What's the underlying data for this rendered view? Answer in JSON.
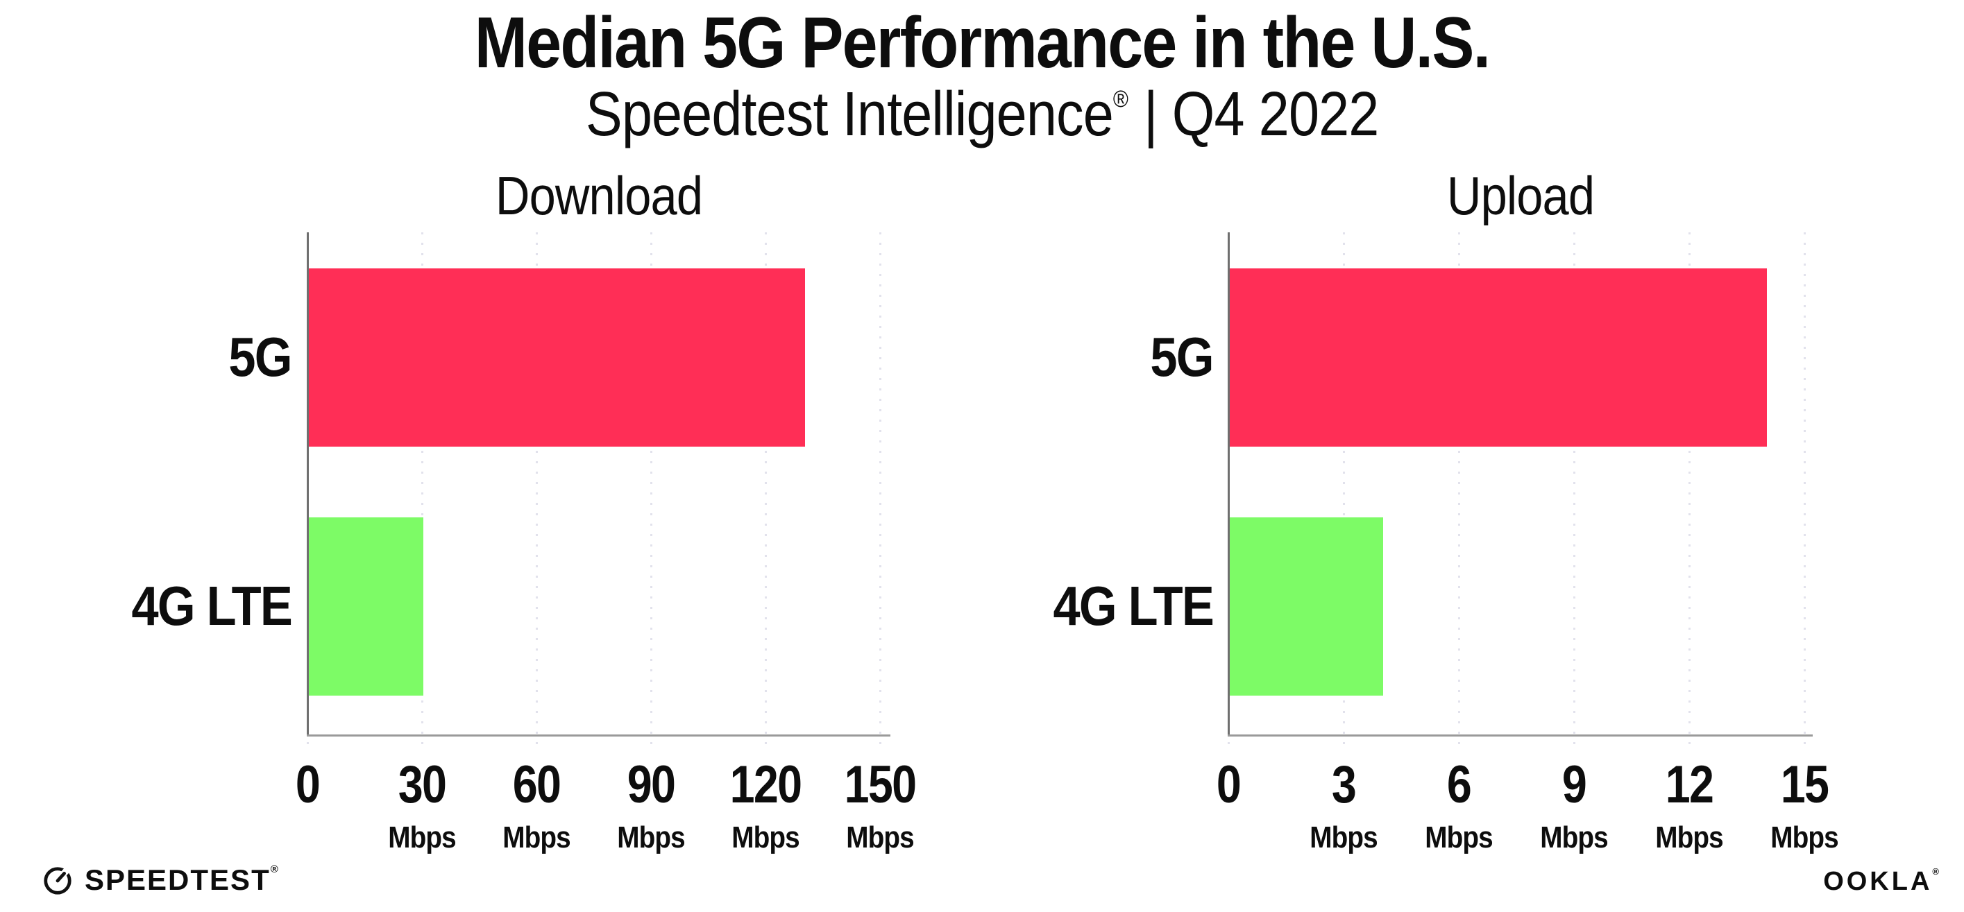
{
  "header": {
    "title": "Median 5G Performance in the U.S.",
    "subtitle_brand": "Speedtest Intelligence",
    "subtitle_reg": "®",
    "subtitle_rest": "| Q4 2022"
  },
  "footer": {
    "speedtest_label": "SPEEDTEST",
    "speedtest_mark": "®",
    "ookla_label": "OOKLA",
    "ookla_mark": "®"
  },
  "colors": {
    "bar_5g": "#ff2e56",
    "bar_4g_lte": "#7dfb66",
    "gridline": "#e2e2ec",
    "axis_line": "#9a9a9a",
    "spine": "#6f6f6f",
    "text": "#0d0d0d"
  },
  "chart_data": [
    {
      "type": "bar",
      "orientation": "horizontal",
      "title": "Download",
      "categories": [
        "5G",
        "4G LTE"
      ],
      "values": [
        130,
        30
      ],
      "unit": "Mbps",
      "xlim": [
        0,
        150
      ],
      "xticks": [
        0,
        30,
        60,
        90,
        120,
        150
      ],
      "bar_colors": [
        "#ff2e56",
        "#7dfb66"
      ],
      "grid": "dotted-vertical",
      "legend": "none"
    },
    {
      "type": "bar",
      "orientation": "horizontal",
      "title": "Upload",
      "categories": [
        "5G",
        "4G LTE"
      ],
      "values": [
        14,
        4
      ],
      "unit": "Mbps",
      "xlim": [
        0,
        15
      ],
      "xticks": [
        0,
        3,
        6,
        9,
        12,
        15
      ],
      "bar_colors": [
        "#ff2e56",
        "#7dfb66"
      ],
      "grid": "dotted-vertical",
      "legend": "none"
    }
  ]
}
